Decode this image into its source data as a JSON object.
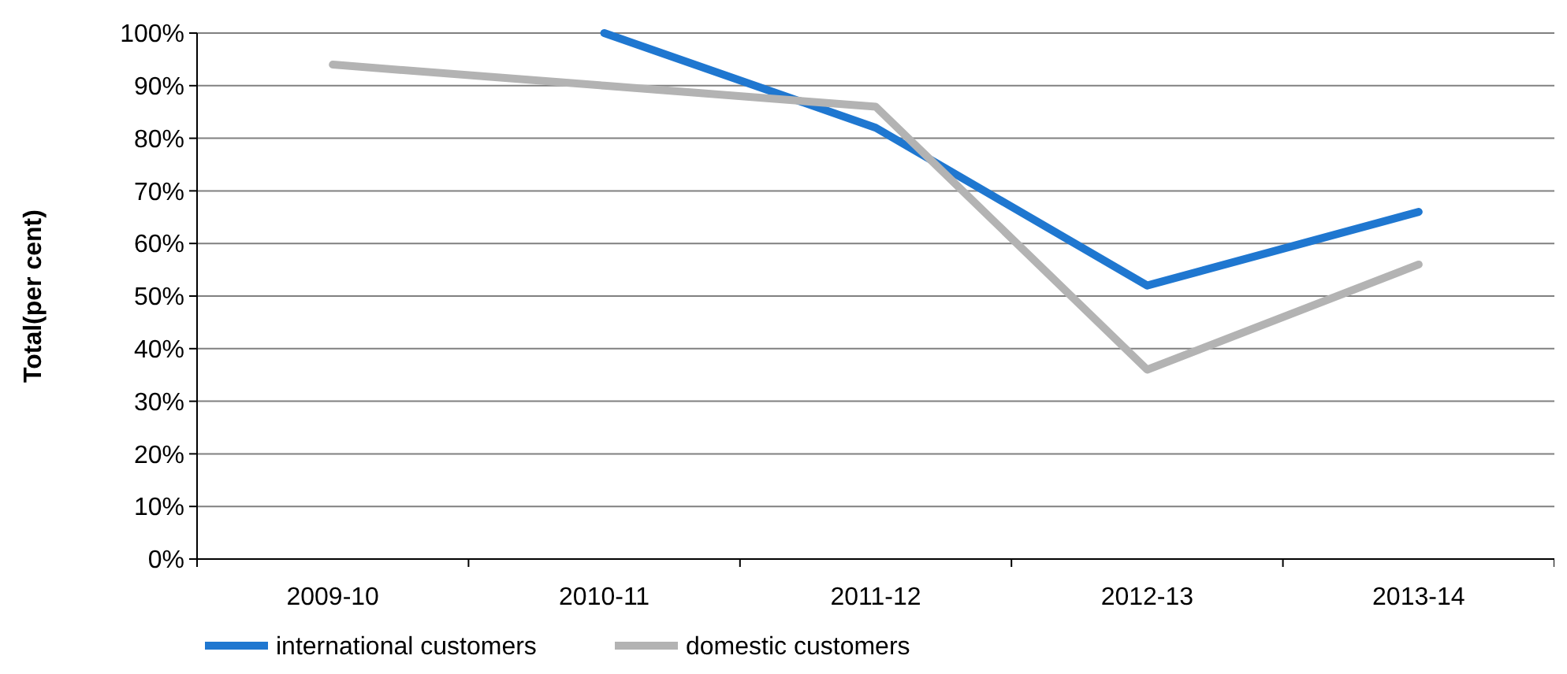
{
  "chart_data": {
    "type": "line",
    "ylabel": "Total(per cent)",
    "categories": [
      "2009-10",
      "2010-11",
      "2011-12",
      "2012-13",
      "2013-14"
    ],
    "series": [
      {
        "name": "international customers",
        "color": "#1f77d0",
        "values": [
          null,
          100,
          82,
          52,
          66
        ]
      },
      {
        "name": "domestic customers",
        "color": "#b3b3b3",
        "values": [
          94,
          90,
          86,
          36,
          56
        ]
      }
    ],
    "ylim": [
      0,
      100
    ],
    "yticks": [
      {
        "value": 0,
        "label": "0%"
      },
      {
        "value": 10,
        "label": "10%"
      },
      {
        "value": 20,
        "label": "20%"
      },
      {
        "value": 30,
        "label": "30%"
      },
      {
        "value": 40,
        "label": "40%"
      },
      {
        "value": 50,
        "label": "50%"
      },
      {
        "value": 60,
        "label": "60%"
      },
      {
        "value": 70,
        "label": "70%"
      },
      {
        "value": 80,
        "label": "80%"
      },
      {
        "value": 90,
        "label": "90%"
      },
      {
        "value": 100,
        "label": "100%"
      }
    ],
    "grid": "y",
    "legend": "bottom left",
    "marker": "none",
    "line_style": "solid"
  }
}
